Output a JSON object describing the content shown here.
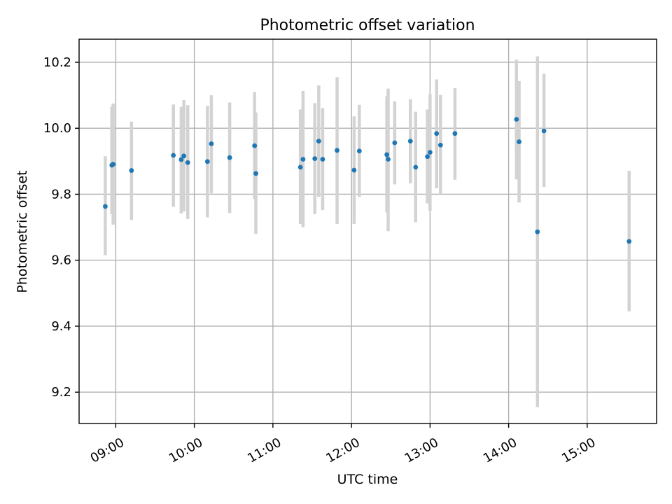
{
  "chart_data": {
    "type": "scatter",
    "title": "Photometric offset variation",
    "xlabel": "UTC time",
    "ylabel": "Photometric offset",
    "grid": true,
    "xlim": [
      "08:32",
      "15:53"
    ],
    "ylim": [
      9.105,
      10.27
    ],
    "x_ticks": [
      "09:00",
      "10:00",
      "11:00",
      "12:00",
      "13:00",
      "14:00",
      "15:00"
    ],
    "y_ticks": [
      "9.2",
      "9.4",
      "9.6",
      "9.8",
      "10.0",
      "10.2"
    ],
    "marker_color": "#1f77b4",
    "errorbar_color": "#d3d3d3",
    "series": [
      {
        "points": [
          {
            "x": "08:52",
            "y": 9.763,
            "low": 9.615,
            "high": 9.915
          },
          {
            "x": "08:57",
            "y": 9.888,
            "low": 9.74,
            "high": 10.065
          },
          {
            "x": "08:58",
            "y": 9.891,
            "low": 9.708,
            "high": 10.075
          },
          {
            "x": "09:12",
            "y": 9.872,
            "low": 9.722,
            "high": 10.02
          },
          {
            "x": "09:44",
            "y": 9.918,
            "low": 9.762,
            "high": 10.072
          },
          {
            "x": "09:50",
            "y": 9.905,
            "low": 9.742,
            "high": 10.065
          },
          {
            "x": "09:52",
            "y": 9.916,
            "low": 9.748,
            "high": 10.085
          },
          {
            "x": "09:55",
            "y": 9.896,
            "low": 9.725,
            "high": 10.07
          },
          {
            "x": "10:10",
            "y": 9.899,
            "low": 9.73,
            "high": 10.068
          },
          {
            "x": "10:13",
            "y": 9.953,
            "low": 9.803,
            "high": 10.1
          },
          {
            "x": "10:27",
            "y": 9.911,
            "low": 9.743,
            "high": 10.078
          },
          {
            "x": "10:46",
            "y": 9.947,
            "low": 9.785,
            "high": 10.11
          },
          {
            "x": "10:47",
            "y": 9.863,
            "low": 9.68,
            "high": 10.048
          },
          {
            "x": "11:21",
            "y": 9.882,
            "low": 9.71,
            "high": 10.057
          },
          {
            "x": "11:23",
            "y": 9.906,
            "low": 9.7,
            "high": 10.113
          },
          {
            "x": "11:32",
            "y": 9.908,
            "low": 9.74,
            "high": 10.076
          },
          {
            "x": "11:35",
            "y": 9.961,
            "low": 9.792,
            "high": 10.13
          },
          {
            "x": "11:38",
            "y": 9.906,
            "low": 9.752,
            "high": 10.061
          },
          {
            "x": "11:49",
            "y": 9.933,
            "low": 9.71,
            "high": 10.155
          },
          {
            "x": "12:02",
            "y": 9.873,
            "low": 9.71,
            "high": 10.036
          },
          {
            "x": "12:06",
            "y": 9.931,
            "low": 9.792,
            "high": 10.071
          },
          {
            "x": "12:27",
            "y": 9.92,
            "low": 9.745,
            "high": 10.097
          },
          {
            "x": "12:28",
            "y": 9.906,
            "low": 9.688,
            "high": 10.12
          },
          {
            "x": "12:33",
            "y": 9.956,
            "low": 9.83,
            "high": 10.082
          },
          {
            "x": "12:45",
            "y": 9.961,
            "low": 9.833,
            "high": 10.088
          },
          {
            "x": "12:49",
            "y": 9.882,
            "low": 9.715,
            "high": 10.05
          },
          {
            "x": "12:58",
            "y": 9.914,
            "low": 9.772,
            "high": 10.057
          },
          {
            "x": "13:00",
            "y": 9.927,
            "low": 9.75,
            "high": 10.103
          },
          {
            "x": "13:05",
            "y": 9.984,
            "low": 9.818,
            "high": 10.148
          },
          {
            "x": "13:08",
            "y": 9.949,
            "low": 9.797,
            "high": 10.101
          },
          {
            "x": "13:19",
            "y": 9.984,
            "low": 9.844,
            "high": 10.122
          },
          {
            "x": "14:06",
            "y": 10.027,
            "low": 9.845,
            "high": 10.208
          },
          {
            "x": "14:08",
            "y": 9.959,
            "low": 9.775,
            "high": 10.143
          },
          {
            "x": "14:22",
            "y": 9.686,
            "low": 9.155,
            "high": 10.218
          },
          {
            "x": "14:27",
            "y": 9.992,
            "low": 9.822,
            "high": 10.165
          },
          {
            "x": "15:32",
            "y": 9.657,
            "low": 9.445,
            "high": 9.871
          }
        ]
      }
    ]
  }
}
